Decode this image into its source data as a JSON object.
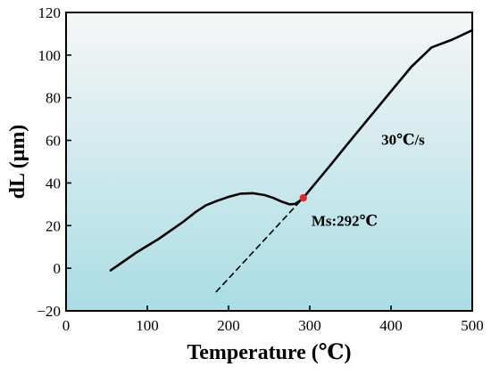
{
  "chart_data": {
    "type": "line",
    "xlabel": "Temperature (℃)",
    "ylabel": "dL (μm)",
    "xlim": [
      0,
      500
    ],
    "ylim": [
      -20,
      120
    ],
    "x_ticks": [
      0,
      100,
      200,
      300,
      400,
      500
    ],
    "y_ticks": [
      -20,
      0,
      20,
      40,
      60,
      80,
      100,
      120
    ],
    "grid": false,
    "background_gradient": [
      "#f6f6f6",
      "#a9dde4"
    ],
    "series": [
      {
        "color": "#000000",
        "style": "solid",
        "x": [
          55,
          70,
          85,
          100,
          115,
          130,
          145,
          160,
          172,
          185,
          200,
          215,
          230,
          245,
          255,
          265,
          275,
          282,
          286,
          290,
          292,
          300,
          325,
          350,
          375,
          400,
          425,
          450,
          475,
          500
        ],
        "y": [
          -1,
          3,
          7,
          10.5,
          14,
          18,
          22,
          26.5,
          29.5,
          31.5,
          33.5,
          35,
          35.2,
          34.3,
          33,
          31.3,
          30,
          30.2,
          31.2,
          32.3,
          33,
          36.7,
          48.2,
          59.9,
          71.5,
          83,
          94.5,
          103.6,
          107.2,
          111.7
        ]
      },
      {
        "color": "#000000",
        "style": "dashed",
        "x": [
          185,
          292
        ],
        "y": [
          -11,
          33
        ]
      }
    ],
    "marker": {
      "x": 292,
      "y": 33,
      "color": "#e8262a"
    },
    "annotations": [
      {
        "text": "30℃/s",
        "x": 388,
        "y": 58
      },
      {
        "text": "Ms:292℃",
        "x": 302,
        "y": 20
      }
    ]
  }
}
